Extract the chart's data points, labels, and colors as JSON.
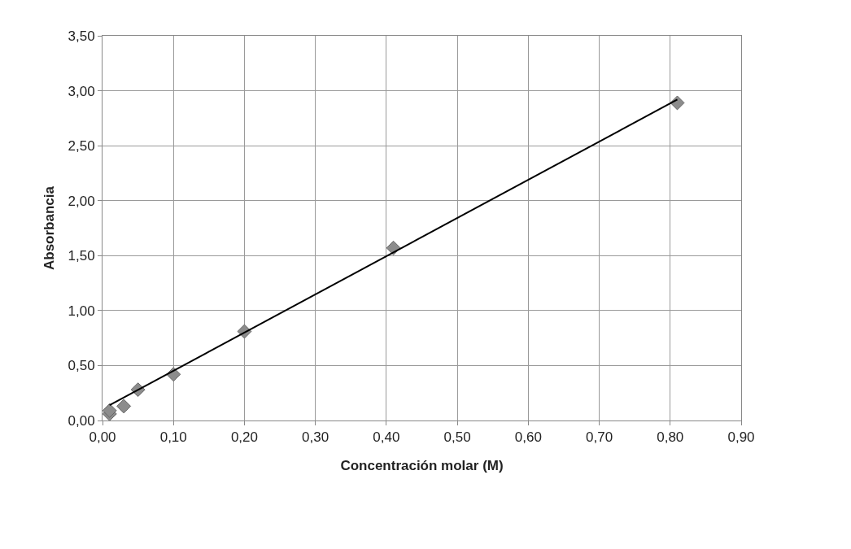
{
  "chart_data": {
    "type": "scatter",
    "xlabel": "Concentración molar (M)",
    "ylabel": "Absorbancia",
    "series": [
      {
        "color": "#8c8c8c",
        "x": [
          0.01,
          0.01,
          0.03,
          0.05,
          0.1,
          0.2,
          0.41,
          0.81
        ],
        "values": [
          0.06,
          0.09,
          0.13,
          0.28,
          0.42,
          0.81,
          1.57,
          2.89
        ]
      },
      {
        "type": "line",
        "color": "#000000",
        "marker": "none",
        "x": [
          0.01,
          0.81
        ],
        "values": [
          0.14,
          2.92
        ]
      }
    ],
    "marker": "diamond",
    "grid": true,
    "xlim": [
      0,
      0.9
    ],
    "xticks": [
      {
        "value": 0,
        "label": "0,00"
      },
      {
        "value": 0.1,
        "label": "0,10"
      },
      {
        "value": 0.2,
        "label": "0,20"
      },
      {
        "value": 0.3,
        "label": "0,30"
      },
      {
        "value": 0.4,
        "label": "0,40"
      },
      {
        "value": 0.5,
        "label": "0,50"
      },
      {
        "value": 0.6,
        "label": "0,60"
      },
      {
        "value": 0.7,
        "label": "0,70"
      },
      {
        "value": 0.8,
        "label": "0,80"
      },
      {
        "value": 0.9,
        "label": "0,90"
      }
    ],
    "ylim": [
      0,
      3.5
    ],
    "yticks": [
      {
        "value": 0,
        "label": "0,00"
      },
      {
        "value": 0.5,
        "label": "0,50"
      },
      {
        "value": 1,
        "label": "1,00"
      },
      {
        "value": 1.5,
        "label": "1,50"
      },
      {
        "value": 2,
        "label": "2,00"
      },
      {
        "value": 2.5,
        "label": "2,50"
      },
      {
        "value": 3,
        "label": "3,00"
      },
      {
        "value": 3.5,
        "label": "3,50"
      }
    ]
  }
}
